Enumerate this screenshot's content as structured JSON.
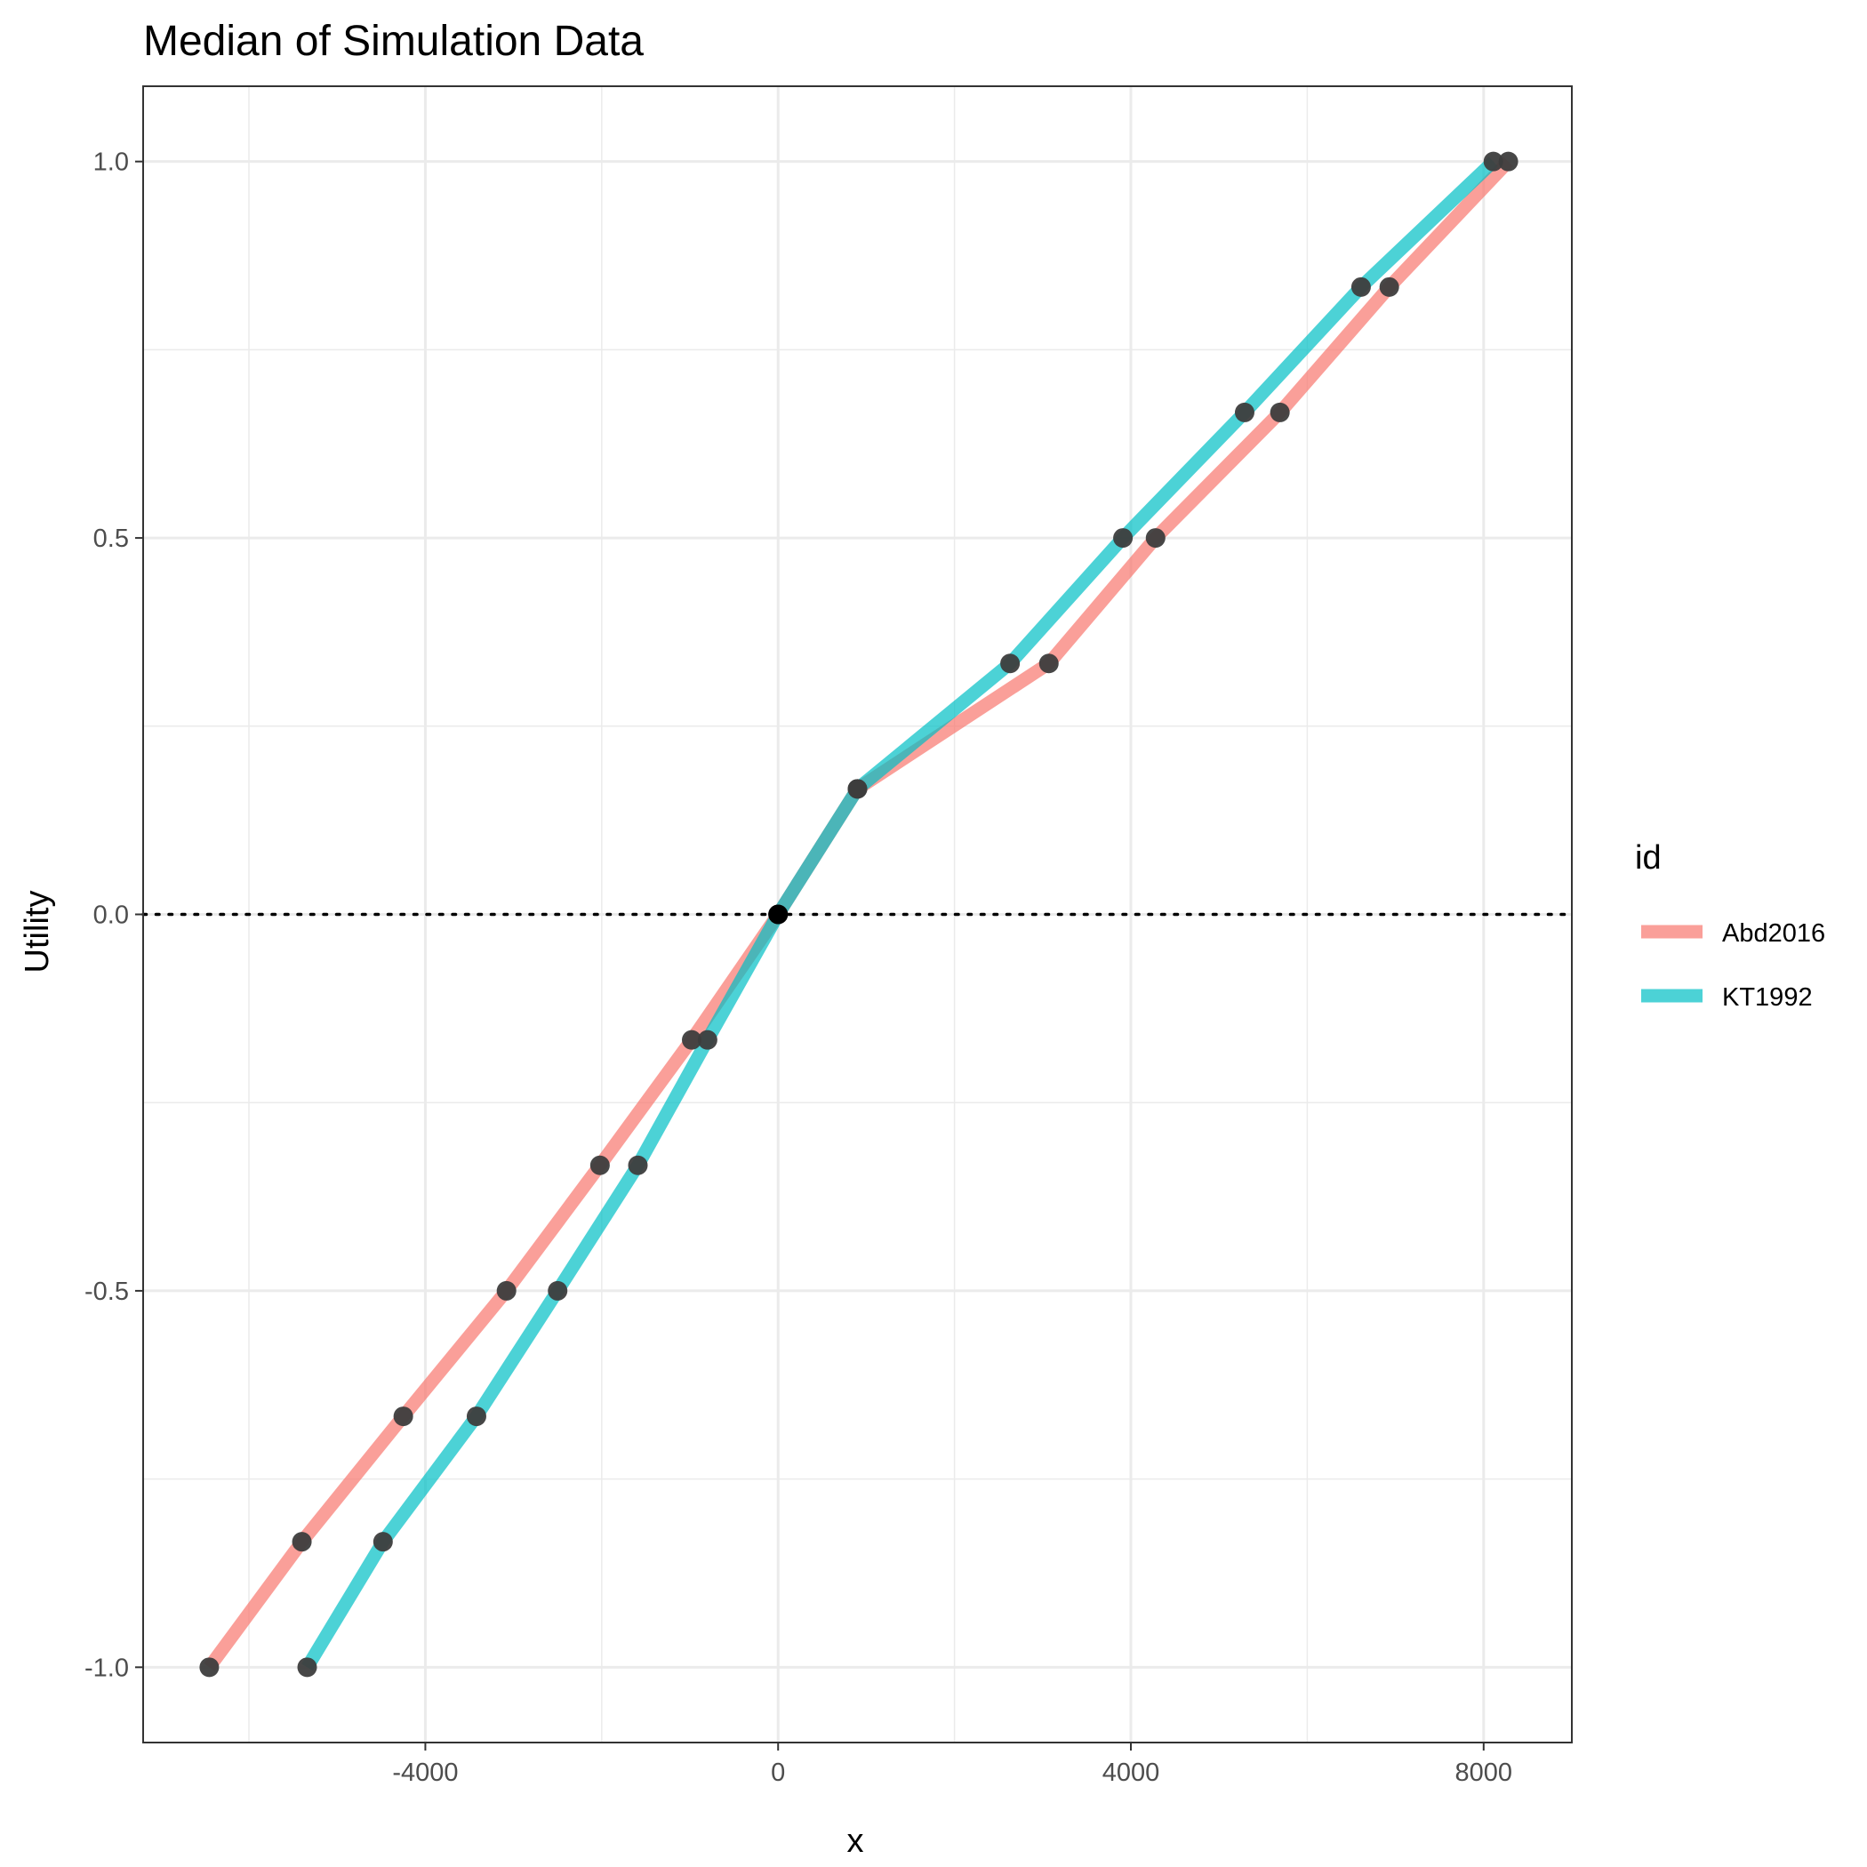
{
  "chart_data": {
    "type": "line",
    "title": "Median of Simulation Data",
    "xlabel": "x",
    "ylabel": "Utility",
    "xlim": [
      -7200,
      9000
    ],
    "ylim": [
      -1.1,
      1.1
    ],
    "x_ticks": [
      -4000,
      0,
      4000,
      8000
    ],
    "x_tick_labels": [
      "-4000",
      "0",
      "4000",
      "8000"
    ],
    "y_ticks": [
      -1.0,
      -0.5,
      0.0,
      0.5,
      1.0
    ],
    "y_tick_labels": [
      "-1.0",
      "-0.5",
      "0.0",
      "0.5",
      "1.0"
    ],
    "grid": true,
    "reference_line": {
      "y": 0,
      "style": "dotted"
    },
    "legend": {
      "title": "id",
      "position": "right"
    },
    "series": [
      {
        "name": "Abd2016",
        "color": "#F8766D",
        "x": [
          -6450,
          -5400,
          -4250,
          -3080,
          -2020,
          -980,
          0,
          900,
          3070,
          4280,
          5690,
          6930,
          8280
        ],
        "y": [
          -1.0,
          -0.8333,
          -0.6667,
          -0.5,
          -0.3333,
          -0.1667,
          0.0,
          0.1667,
          0.3333,
          0.5,
          0.6667,
          0.8333,
          1.0
        ]
      },
      {
        "name": "KT1992",
        "color": "#00BFC4",
        "x": [
          -5340,
          -4480,
          -3420,
          -2500,
          -1590,
          -800,
          0,
          900,
          2630,
          3910,
          5290,
          6610,
          8110
        ],
        "y": [
          -1.0,
          -0.8333,
          -0.6667,
          -0.5,
          -0.3333,
          -0.1667,
          0.0,
          0.1667,
          0.3333,
          0.5,
          0.6667,
          0.8333,
          1.0
        ]
      }
    ]
  }
}
